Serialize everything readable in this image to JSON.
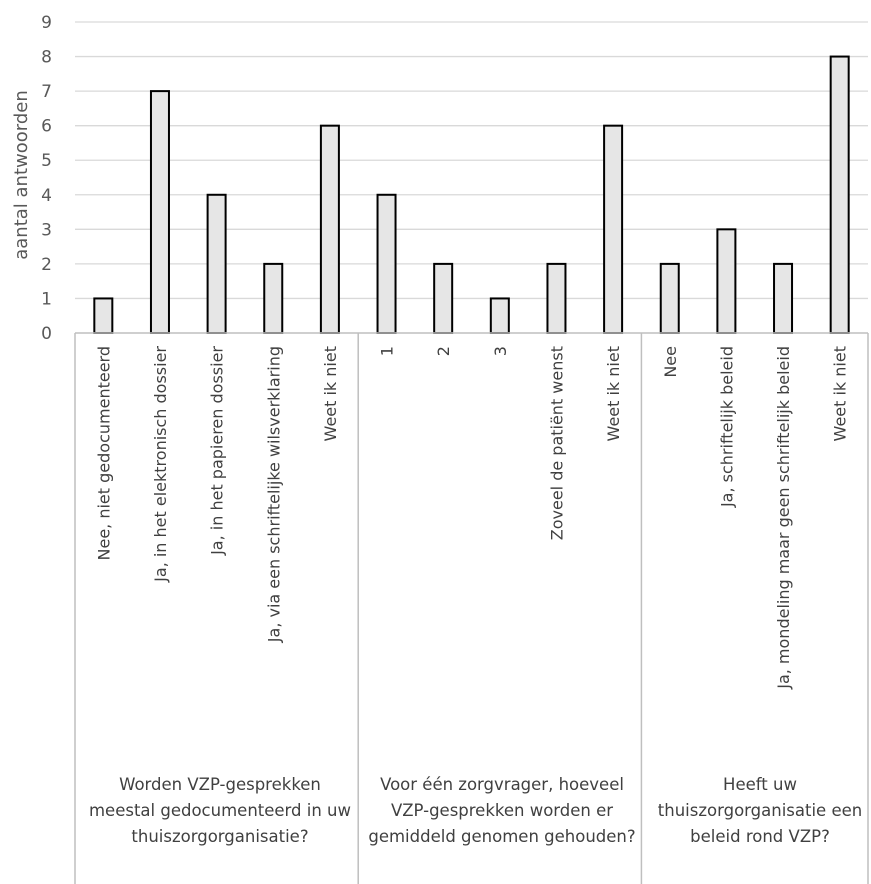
{
  "chart_data": {
    "type": "bar",
    "ylabel": "aantal antwoorden",
    "ylim": [
      0,
      9
    ],
    "yticks": [
      "0",
      "1",
      "2",
      "3",
      "4",
      "5",
      "6",
      "7",
      "8",
      "9"
    ],
    "grid": true,
    "legend": "none",
    "colors": {
      "bar_fill": "#e6e6e6",
      "bar_stroke": "#000000",
      "grid": "#d9d9d9",
      "axis": "#bfbfbf"
    },
    "groups": [
      {
        "label": "Worden VZP-gesprekken meestal gedocumenteerd in uw thuiszorgorganisatie?",
        "categories": [
          "Nee, niet gedocumenteerd",
          "Ja, in het elektronisch dossier",
          "Ja, in het papieren dossier",
          "Ja, via een schriftelijke wilsverklaring",
          "Weet ik niet"
        ],
        "values": [
          1,
          7,
          4,
          2,
          6
        ]
      },
      {
        "label": "Voor één zorgvrager, hoeveel VZP-gesprekken worden er gemiddeld genomen gehouden?",
        "categories": [
          "1",
          "2",
          "3",
          "Zoveel de patiënt wenst",
          "Weet ik niet"
        ],
        "values": [
          4,
          2,
          1,
          2,
          6
        ]
      },
      {
        "label": "Heeft uw thuiszorgorganisatie een beleid rond VZP?",
        "categories": [
          "Nee",
          "Ja, schriftelijk beleid",
          "Ja, mondeling maar geen schriftelijk beleid",
          "Weet ik niet"
        ],
        "values": [
          2,
          3,
          2,
          8
        ]
      }
    ]
  }
}
